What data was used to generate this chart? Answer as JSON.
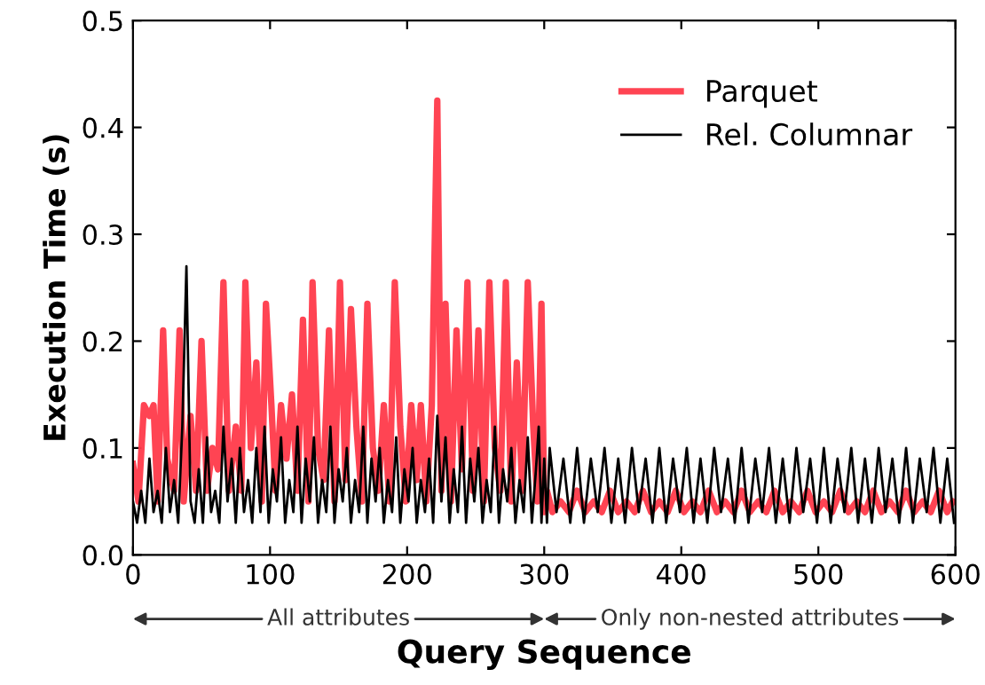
{
  "chart_data": {
    "type": "line",
    "xlabel": "Query Sequence",
    "ylabel": "Execution Time (s)",
    "xlim": [
      0,
      600
    ],
    "xticks": [
      0,
      100,
      200,
      300,
      400,
      500,
      600
    ],
    "ylim": [
      0,
      0.5
    ],
    "yticks": [
      {
        "value": 0,
        "label": "0.0"
      },
      {
        "value": 0.1,
        "label": "0.1"
      },
      {
        "value": 0.2,
        "label": "0.2"
      },
      {
        "value": 0.3,
        "label": "0.3"
      },
      {
        "value": 0.4,
        "label": "0.4"
      },
      {
        "value": 0.5,
        "label": "0.5"
      }
    ],
    "grid": false,
    "legend": "top right",
    "marker": "none",
    "line_style": "solid",
    "annotations": [
      "All attributes",
      "Only non-nested attributes"
    ],
    "series": [
      {
        "name": "Parquet",
        "color": "#ff3a4a",
        "x": [
          0,
          4,
          8,
          12,
          15,
          18,
          22,
          25,
          30,
          34,
          37,
          42,
          46,
          50,
          54,
          58,
          62,
          66,
          70,
          75,
          79,
          82,
          86,
          90,
          94,
          97,
          101,
          104,
          108,
          112,
          116,
          120,
          124,
          128,
          131,
          135,
          139,
          143,
          147,
          151,
          155,
          159,
          163,
          167,
          171,
          175,
          179,
          183,
          187,
          191,
          195,
          199,
          203,
          207,
          210,
          214,
          218,
          222,
          225,
          228,
          232,
          236,
          240,
          244,
          248,
          252,
          256,
          260,
          264,
          268,
          272,
          276,
          280,
          284,
          288,
          292,
          295,
          298,
          300,
          302,
          306,
          312,
          318,
          324,
          330,
          336,
          342,
          348,
          354,
          360,
          366,
          372,
          378,
          384,
          390,
          396,
          402,
          408,
          414,
          420,
          426,
          432,
          438,
          444,
          450,
          456,
          462,
          468,
          474,
          480,
          486,
          492,
          498,
          504,
          510,
          516,
          522,
          528,
          534,
          540,
          546,
          552,
          558,
          564,
          570,
          576,
          582,
          588,
          594,
          598
        ],
        "values": [
          0.085,
          0.05,
          0.14,
          0.13,
          0.14,
          0.05,
          0.21,
          0.09,
          0.06,
          0.21,
          0.05,
          0.13,
          0.06,
          0.2,
          0.06,
          0.1,
          0.08,
          0.255,
          0.06,
          0.12,
          0.06,
          0.255,
          0.1,
          0.18,
          0.05,
          0.235,
          0.14,
          0.06,
          0.14,
          0.09,
          0.15,
          0.06,
          0.22,
          0.05,
          0.255,
          0.1,
          0.07,
          0.21,
          0.05,
          0.255,
          0.07,
          0.23,
          0.12,
          0.05,
          0.235,
          0.1,
          0.06,
          0.14,
          0.05,
          0.255,
          0.12,
          0.05,
          0.14,
          0.07,
          0.14,
          0.05,
          0.14,
          0.425,
          0.06,
          0.235,
          0.05,
          0.21,
          0.08,
          0.255,
          0.06,
          0.21,
          0.05,
          0.255,
          0.1,
          0.06,
          0.255,
          0.05,
          0.18,
          0.06,
          0.255,
          0.12,
          0.05,
          0.235,
          0.04,
          0.06,
          0.04,
          0.05,
          0.04,
          0.06,
          0.04,
          0.05,
          0.04,
          0.06,
          0.04,
          0.05,
          0.04,
          0.06,
          0.04,
          0.05,
          0.04,
          0.06,
          0.04,
          0.05,
          0.04,
          0.06,
          0.04,
          0.05,
          0.04,
          0.06,
          0.04,
          0.05,
          0.04,
          0.06,
          0.04,
          0.05,
          0.04,
          0.06,
          0.04,
          0.05,
          0.04,
          0.06,
          0.04,
          0.05,
          0.04,
          0.06,
          0.04,
          0.05,
          0.04,
          0.06,
          0.04,
          0.05,
          0.04,
          0.06,
          0.04,
          0.05
        ]
      },
      {
        "name": "Rel. Columnar",
        "color": "#000000",
        "x": [
          0,
          3,
          6,
          9,
          12,
          15,
          18,
          21,
          24,
          27,
          30,
          33,
          36,
          39,
          42,
          45,
          48,
          51,
          54,
          57,
          60,
          63,
          66,
          69,
          72,
          75,
          78,
          81,
          84,
          87,
          90,
          93,
          96,
          99,
          102,
          105,
          108,
          111,
          114,
          117,
          120,
          123,
          126,
          129,
          132,
          135,
          138,
          141,
          144,
          147,
          150,
          153,
          156,
          159,
          162,
          165,
          168,
          171,
          174,
          177,
          180,
          183,
          186,
          189,
          192,
          195,
          198,
          201,
          204,
          207,
          210,
          213,
          216,
          219,
          222,
          225,
          228,
          231,
          234,
          237,
          240,
          243,
          246,
          249,
          252,
          255,
          258,
          261,
          264,
          267,
          270,
          273,
          276,
          279,
          282,
          285,
          288,
          291,
          294,
          296,
          298,
          300,
          302,
          304,
          309,
          314,
          319,
          324,
          329,
          334,
          339,
          344,
          349,
          354,
          359,
          364,
          369,
          374,
          379,
          384,
          389,
          394,
          399,
          404,
          409,
          414,
          419,
          424,
          429,
          434,
          439,
          444,
          449,
          454,
          459,
          464,
          469,
          474,
          479,
          484,
          489,
          494,
          499,
          504,
          509,
          514,
          519,
          524,
          529,
          534,
          539,
          544,
          549,
          554,
          559,
          564,
          569,
          574,
          579,
          584,
          589,
          594,
          599
        ],
        "values": [
          0.05,
          0.03,
          0.06,
          0.03,
          0.09,
          0.04,
          0.06,
          0.03,
          0.1,
          0.04,
          0.07,
          0.03,
          0.12,
          0.27,
          0.05,
          0.03,
          0.08,
          0.03,
          0.11,
          0.04,
          0.06,
          0.03,
          0.12,
          0.05,
          0.09,
          0.03,
          0.1,
          0.04,
          0.07,
          0.03,
          0.1,
          0.04,
          0.12,
          0.03,
          0.08,
          0.05,
          0.11,
          0.03,
          0.07,
          0.04,
          0.12,
          0.03,
          0.09,
          0.05,
          0.11,
          0.03,
          0.07,
          0.04,
          0.12,
          0.03,
          0.08,
          0.05,
          0.1,
          0.03,
          0.07,
          0.04,
          0.12,
          0.03,
          0.09,
          0.05,
          0.1,
          0.03,
          0.07,
          0.04,
          0.11,
          0.03,
          0.08,
          0.05,
          0.1,
          0.03,
          0.07,
          0.04,
          0.09,
          0.03,
          0.13,
          0.05,
          0.11,
          0.03,
          0.08,
          0.04,
          0.12,
          0.03,
          0.09,
          0.05,
          0.1,
          0.03,
          0.07,
          0.04,
          0.12,
          0.03,
          0.08,
          0.05,
          0.1,
          0.03,
          0.07,
          0.04,
          0.11,
          0.03,
          0.08,
          0.12,
          0.03,
          0.09,
          0.03,
          0.1,
          0.04,
          0.09,
          0.03,
          0.1,
          0.03,
          0.09,
          0.04,
          0.1,
          0.03,
          0.09,
          0.03,
          0.1,
          0.04,
          0.09,
          0.03,
          0.1,
          0.03,
          0.09,
          0.04,
          0.1,
          0.03,
          0.09,
          0.03,
          0.1,
          0.04,
          0.09,
          0.03,
          0.1,
          0.03,
          0.09,
          0.04,
          0.1,
          0.03,
          0.09,
          0.03,
          0.1,
          0.04,
          0.09,
          0.03,
          0.1,
          0.03,
          0.09,
          0.04,
          0.1,
          0.03,
          0.09,
          0.03,
          0.1,
          0.04,
          0.09,
          0.03,
          0.1,
          0.03,
          0.09,
          0.04,
          0.1,
          0.03,
          0.09,
          0.03
        ]
      }
    ]
  }
}
